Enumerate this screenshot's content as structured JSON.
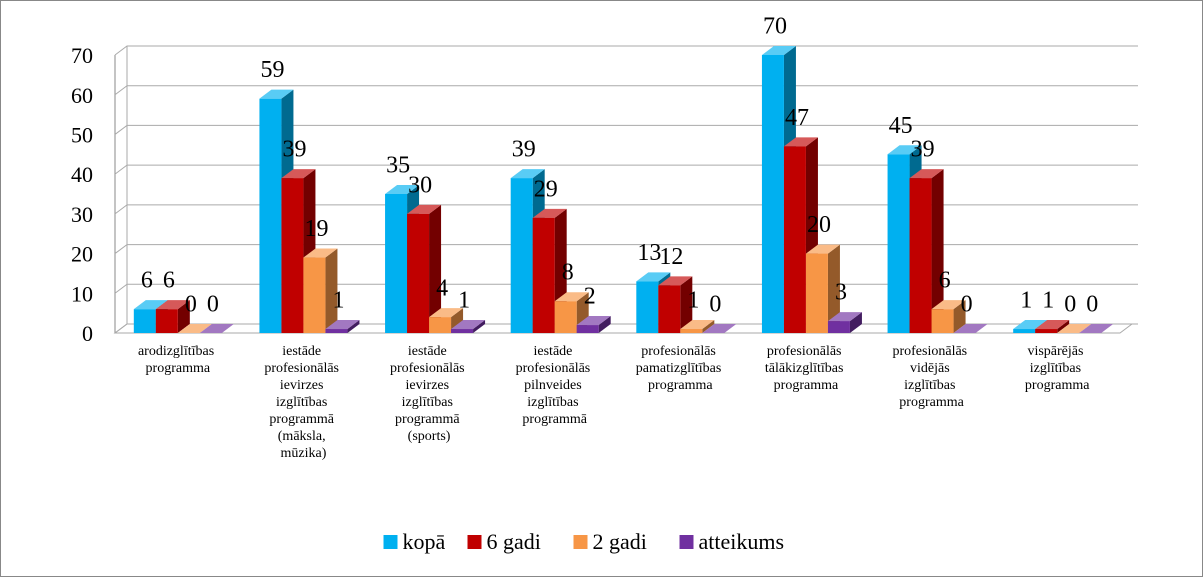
{
  "chart_data": {
    "type": "bar3d",
    "categories": [
      "arodizglītības programma",
      "iestāde profesionālās ievirzes izglītības programmā (māksla, mūzika)",
      "iestāde profesionālās ievirzes izglītības programmā (sports)",
      "iestāde profesionālās pilnveides izglītības programmā",
      "profesionālās pamatizglītības programma",
      "profesionālās tālākizglītības programma",
      "profesionālās vidējās izglītības programma",
      "vispārējās izglītības programma"
    ],
    "series": [
      {
        "name": "kopā",
        "color": "#00b0f0",
        "values": [
          6,
          59,
          35,
          39,
          13,
          70,
          45,
          1
        ]
      },
      {
        "name": "6 gadi",
        "color": "#c00000",
        "values": [
          6,
          39,
          30,
          29,
          12,
          47,
          39,
          1
        ]
      },
      {
        "name": "2 gadi",
        "color": "#f79646",
        "values": [
          0,
          19,
          4,
          8,
          1,
          20,
          6,
          0
        ]
      },
      {
        "name": "atteikums",
        "color": "#7030a0",
        "values": [
          0,
          1,
          1,
          2,
          0,
          3,
          0,
          0
        ]
      }
    ],
    "ylim": [
      0,
      70
    ],
    "yticks": [
      0,
      10,
      20,
      30,
      40,
      50,
      60,
      70
    ],
    "grid": true,
    "legend": "bottom"
  }
}
